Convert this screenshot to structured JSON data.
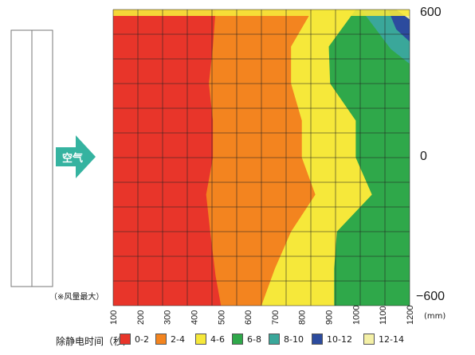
{
  "chart_data": {
    "type": "heatmap",
    "x_ticks": [
      100,
      200,
      300,
      400,
      500,
      600,
      700,
      800,
      900,
      1000,
      1100,
      1200
    ],
    "x_unit": "(mm)",
    "y_ticks": [
      "600",
      "0",
      "−600"
    ],
    "xlim": [
      100,
      1200
    ],
    "ylim": [
      -600,
      600
    ],
    "grid": true,
    "note": "（※风量最大）",
    "air_label": "空气",
    "legend_title": "除静电时间（秒）",
    "legend": [
      {
        "label": "0-2",
        "color": "#e8352a"
      },
      {
        "label": "2-4",
        "color": "#f3841f"
      },
      {
        "label": "4-6",
        "color": "#f6e83a"
      },
      {
        "label": "6-8",
        "color": "#2fa84a"
      },
      {
        "label": "8-10",
        "color": "#3aa79a"
      },
      {
        "label": "10-12",
        "color": "#2c4b9e"
      },
      {
        "label": "12-14",
        "color": "#f4f0a6"
      }
    ],
    "boundaries": [
      {
        "band": "0-2",
        "points": [
          [
            480,
            600
          ],
          [
            470,
            450
          ],
          [
            455,
            300
          ],
          [
            470,
            150
          ],
          [
            470,
            0
          ],
          [
            445,
            -150
          ],
          [
            460,
            -300
          ],
          [
            480,
            -480
          ],
          [
            500,
            -600
          ]
        ]
      },
      {
        "band": "2-4",
        "points": [
          [
            840,
            600
          ],
          [
            760,
            450
          ],
          [
            760,
            300
          ],
          [
            800,
            150
          ],
          [
            800,
            0
          ],
          [
            850,
            -150
          ],
          [
            760,
            -300
          ],
          [
            700,
            -450
          ],
          [
            650,
            -600
          ]
        ]
      },
      {
        "band": "4-6",
        "points": [
          [
            1000,
            600
          ],
          [
            900,
            450
          ],
          [
            905,
            300
          ],
          [
            1000,
            150
          ],
          [
            1000,
            0
          ],
          [
            1060,
            -150
          ],
          [
            930,
            -300
          ],
          [
            920,
            -450
          ],
          [
            920,
            -600
          ]
        ]
      },
      {
        "band": "6-8",
        "points": [
          [
            1200,
            300
          ],
          [
            1200,
            -600
          ]
        ]
      }
    ],
    "corner_region": {
      "band": "8-10",
      "points": [
        [
          1020,
          600
        ],
        [
          1200,
          600
        ],
        [
          1200,
          380
        ],
        [
          1130,
          440
        ]
      ]
    },
    "corner_region_inner": {
      "band": "10-12",
      "points": [
        [
          1120,
          600
        ],
        [
          1200,
          600
        ],
        [
          1200,
          470
        ],
        [
          1150,
          520
        ]
      ]
    },
    "corner_region_top": {
      "band": "12-14",
      "points": [
        [
          1150,
          600
        ],
        [
          1200,
          600
        ],
        [
          1200,
          560
        ]
      ]
    }
  }
}
